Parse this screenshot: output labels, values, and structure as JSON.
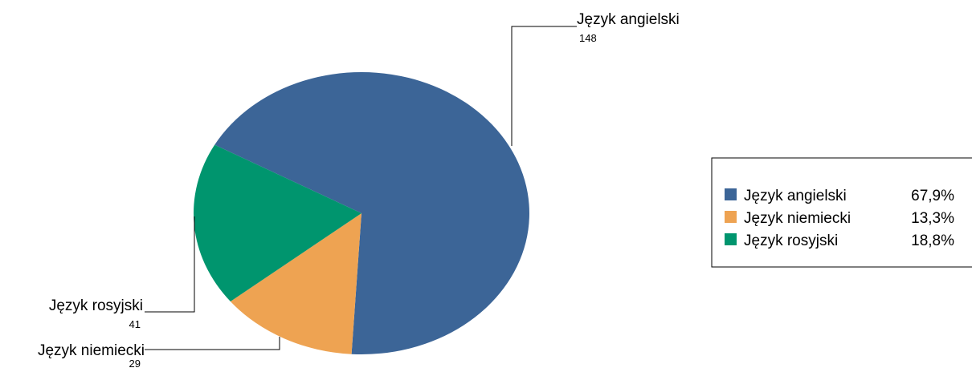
{
  "chart_data": {
    "type": "pie",
    "categories": [
      "Język angielski",
      "Język niemiecki",
      "Język rosyjski"
    ],
    "values": [
      148,
      29,
      41
    ],
    "percent_labels": [
      "67,9%",
      "13,3%",
      "18,8%"
    ],
    "colors": [
      "#3c6597",
      "#eea352",
      "#00956e"
    ],
    "start_angle_deg": 209,
    "legend_position": "right"
  }
}
